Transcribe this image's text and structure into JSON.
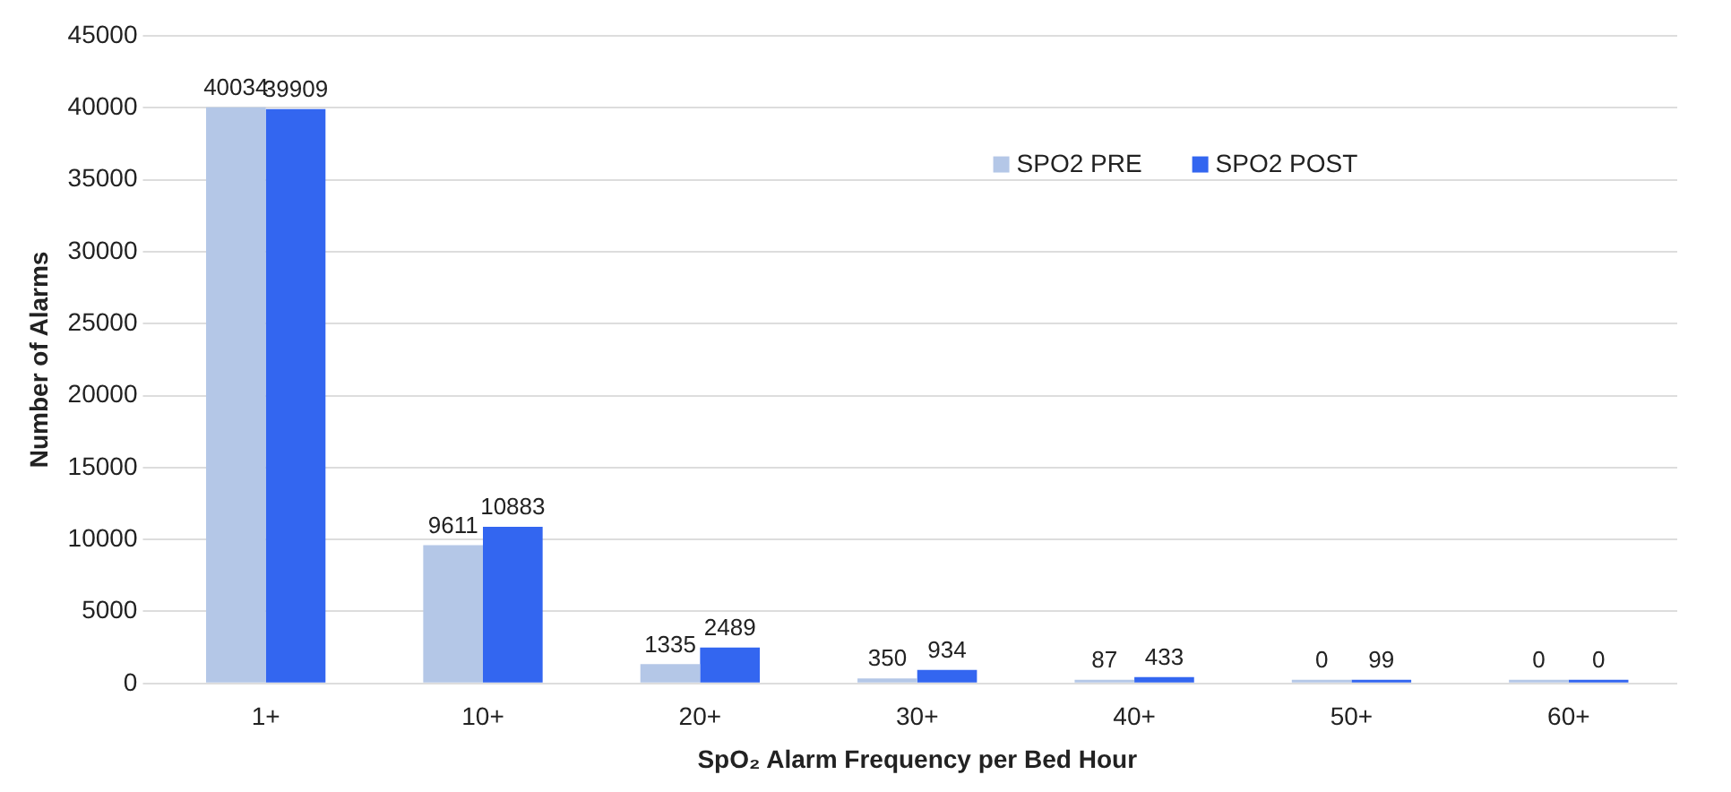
{
  "chart_data": {
    "type": "bar",
    "xlabel": "SpO₂ Alarm Frequency per Bed Hour",
    "ylabel": "Number of Alarms",
    "categories": [
      "1+",
      "10+",
      "20+",
      "30+",
      "40+",
      "50+",
      "60+"
    ],
    "series": [
      {
        "name": "SPO2 PRE",
        "color": "#b4c7e7",
        "values": [
          40034,
          9611,
          1335,
          350,
          87,
          0,
          0
        ]
      },
      {
        "name": "SPO2 POST",
        "color": "#3366f0",
        "values": [
          39909,
          10883,
          2489,
          934,
          433,
          99,
          0
        ]
      }
    ],
    "ylim": [
      0,
      45000
    ],
    "yticks": [
      0,
      5000,
      10000,
      15000,
      20000,
      25000,
      30000,
      35000,
      40000,
      45000
    ],
    "grid": "y",
    "legend": "top right",
    "data_labels": true
  }
}
